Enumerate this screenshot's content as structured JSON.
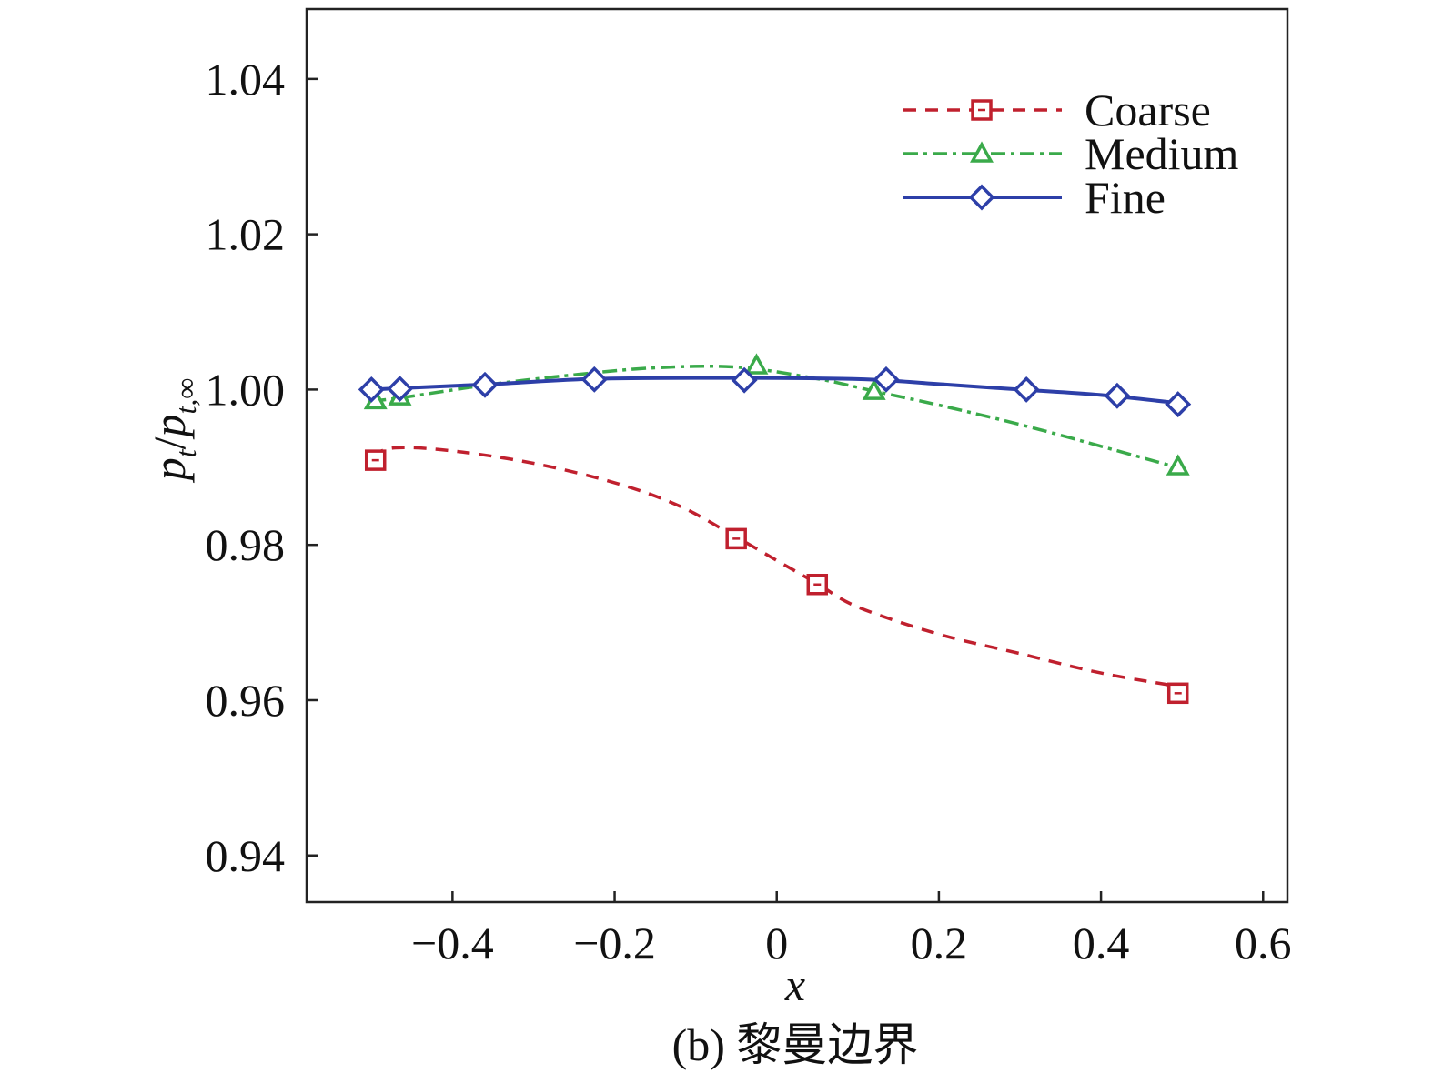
{
  "chart_data": {
    "type": "line",
    "title": "",
    "caption": "(b) 黎曼边界",
    "xlabel": "x",
    "ylabel": {
      "main": "p",
      "sub": "t",
      "sep": "/",
      "main2": "p",
      "sub2": "t,∞"
    },
    "xlim": [
      -0.58,
      0.63
    ],
    "ylim": [
      0.934,
      1.049
    ],
    "xticks": [
      -0.4,
      -0.2,
      0,
      0.2,
      0.4,
      0.6
    ],
    "xtick_labels": [
      "−0.4",
      "−0.2",
      "0",
      "0.2",
      "0.4",
      "0.6"
    ],
    "yticks": [
      0.94,
      0.96,
      0.98,
      1.0,
      1.02,
      1.04
    ],
    "ytick_labels": [
      "0.94",
      "0.96",
      "0.98",
      "1.00",
      "1.02",
      "1.04"
    ],
    "legend_position": "top-right",
    "series": [
      {
        "name": "Coarse",
        "color": "#c0202e",
        "dash": "14,10",
        "marker": "square",
        "curve": [
          [
            -0.5,
            0.9915
          ],
          [
            -0.47,
            0.9925
          ],
          [
            -0.4,
            0.9921
          ],
          [
            -0.3,
            0.9905
          ],
          [
            -0.2,
            0.988
          ],
          [
            -0.12,
            0.985
          ],
          [
            -0.05,
            0.981
          ],
          [
            0.0,
            0.978
          ],
          [
            0.05,
            0.975
          ],
          [
            0.1,
            0.972
          ],
          [
            0.2,
            0.9685
          ],
          [
            0.3,
            0.966
          ],
          [
            0.4,
            0.9635
          ],
          [
            0.5,
            0.9617
          ]
        ],
        "markers": [
          [
            -0.495,
            0.9909
          ],
          [
            -0.05,
            0.9808
          ],
          [
            0.05,
            0.9749
          ],
          [
            0.495,
            0.9609
          ]
        ]
      },
      {
        "name": "Medium",
        "color": "#3aaa4a",
        "dash": "16,6,4,6",
        "marker": "triangle",
        "curve": [
          [
            -0.5,
            0.9985
          ],
          [
            -0.46,
            0.999
          ],
          [
            -0.35,
            1.0007
          ],
          [
            -0.25,
            1.0019
          ],
          [
            -0.15,
            1.0028
          ],
          [
            -0.05,
            1.0029
          ],
          [
            0.05,
            1.0014
          ],
          [
            0.12,
            0.9998
          ],
          [
            0.2,
            0.998
          ],
          [
            0.3,
            0.9955
          ],
          [
            0.4,
            0.9927
          ],
          [
            0.5,
            0.9898
          ]
        ],
        "markers": [
          [
            -0.495,
            0.9986
          ],
          [
            -0.465,
            0.9991
          ],
          [
            -0.025,
            1.0031
          ],
          [
            0.12,
            0.9998
          ],
          [
            0.495,
            0.9901
          ]
        ]
      },
      {
        "name": "Fine",
        "color": "#2d3fa8",
        "dash": "",
        "marker": "diamond",
        "curve": [
          [
            -0.5,
            1.0
          ],
          [
            -0.46,
            1.0002
          ],
          [
            -0.35,
            1.0007
          ],
          [
            -0.22,
            1.0014
          ],
          [
            -0.04,
            1.0015
          ],
          [
            0.08,
            1.0014
          ],
          [
            0.135,
            1.0012
          ],
          [
            0.2,
            1.0007
          ],
          [
            0.3,
            1.0
          ],
          [
            0.4,
            0.9993
          ],
          [
            0.5,
            0.9982
          ]
        ],
        "markers": [
          [
            -0.5,
            1.0
          ],
          [
            -0.465,
            1.0001
          ],
          [
            -0.36,
            1.0006
          ],
          [
            -0.225,
            1.0013
          ],
          [
            -0.04,
            1.0012
          ],
          [
            0.135,
            1.0013
          ],
          [
            0.308,
            1.0
          ],
          [
            0.42,
            0.9992
          ],
          [
            0.495,
            0.9981
          ]
        ]
      }
    ]
  }
}
